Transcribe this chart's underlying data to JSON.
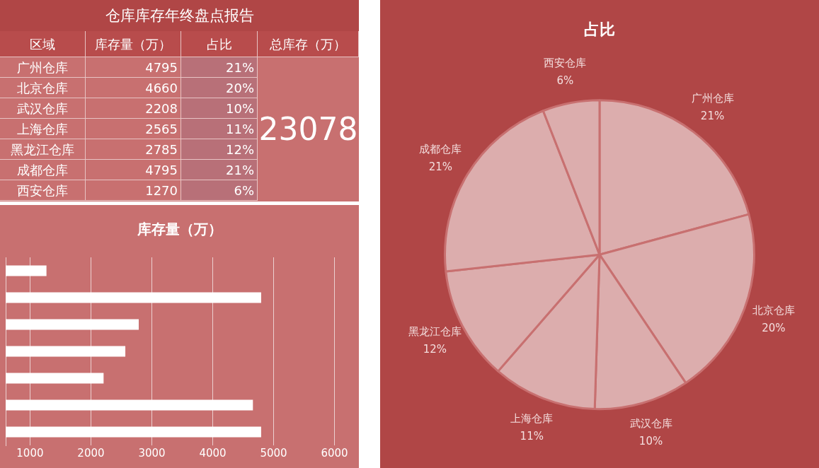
{
  "chart_data": [
    {
      "type": "other",
      "title": "仓库库存年终盘点报告",
      "annotations": [
        "区域",
        "库存量（万）",
        "占比",
        "总库存（万）",
        "广州仓库",
        "4795",
        "21%",
        "北京仓库",
        "4660",
        "20%",
        "武汉仓库",
        "2208",
        "10%",
        "上海仓库",
        "2565",
        "11%",
        "黑龙江仓库",
        "2785",
        "12%",
        "成都仓库",
        "4795",
        "21%",
        "西安仓库",
        "1270",
        "6%",
        "23078"
      ]
    },
    {
      "type": "bar",
      "orientation": "horizontal",
      "title": "库存量（万）",
      "categories": [
        null,
        null,
        null,
        null,
        null,
        null,
        null
      ],
      "series": [
        {
          "color": "#ffffff",
          "values": [
            1270,
            4795,
            2785,
            2565,
            2208,
            4660,
            4795
          ]
        }
      ],
      "xlim": [
        600,
        6400
      ],
      "xticks": [
        1000,
        2000,
        3000,
        4000,
        5000,
        6000
      ],
      "grid": "x",
      "legend": false
    },
    {
      "type": "pie",
      "title": "占比",
      "categories": [
        "广州仓库",
        "北京仓库",
        "武汉仓库",
        "上海仓库",
        "黑龙江仓库",
        "成都仓库",
        "西安仓库"
      ],
      "values": [
        21,
        20,
        10,
        11,
        12,
        21,
        6
      ],
      "value_labels": [
        "21%",
        "20%",
        "10%",
        "11%",
        "12%",
        "21%",
        "6%"
      ],
      "colors": [
        "#dcadad",
        "#dcadad",
        "#dcadad",
        "#dcadad",
        "#dcadad",
        "#dcadad",
        "#dcadad"
      ],
      "legend": false
    }
  ]
}
